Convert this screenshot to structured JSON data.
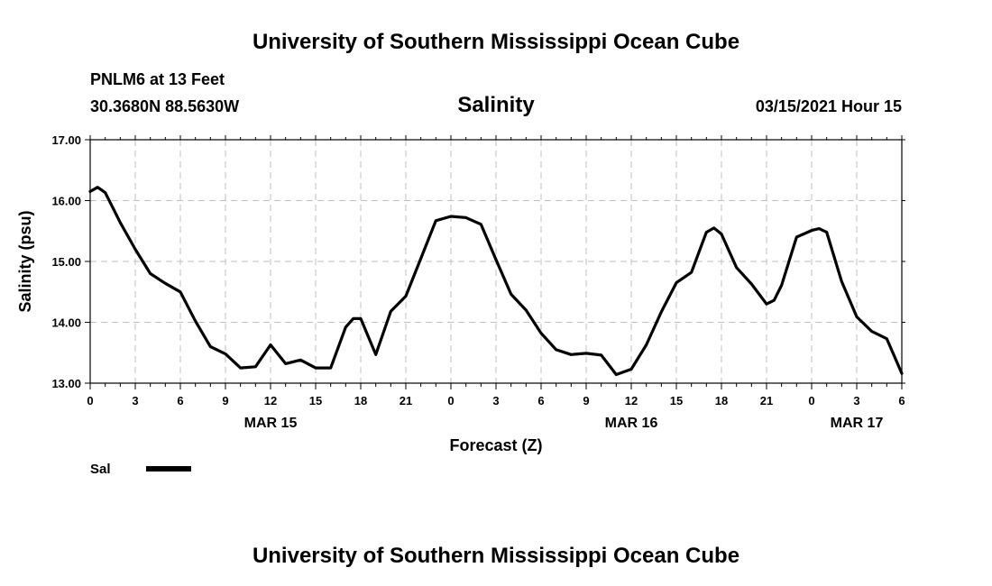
{
  "header": {
    "title": "University of Southern Mississippi Ocean Cube",
    "station": "PNLM6 at 13 Feet",
    "coords": "30.3680N 88.5630W",
    "variable": "Salinity",
    "run": "03/15/2021 Hour 15"
  },
  "footer": {
    "title": "University of Southern Mississippi Ocean Cube"
  },
  "chart_data": {
    "type": "line",
    "title": "Salinity",
    "xlabel": "Forecast (Z)",
    "ylabel": "Salinity (psu)",
    "ylim": [
      13.0,
      17.0
    ],
    "yticks": [
      "13.00",
      "14.00",
      "15.00",
      "16.00",
      "17.00"
    ],
    "xlim": [
      "03/15/2021 00Z",
      "03/17/2021 06Z"
    ],
    "xtick_labels": [
      "0",
      "3",
      "6",
      "9",
      "12",
      "15",
      "18",
      "21",
      "0",
      "3",
      "6",
      "9",
      "12",
      "15",
      "18",
      "21",
      "0",
      "3",
      "6"
    ],
    "date_labels": [
      {
        "text": "MAR 15",
        "at": "03/15/2021 12Z"
      },
      {
        "text": "MAR 16",
        "at": "03/16/2021 12Z"
      },
      {
        "text": "MAR 17",
        "at": "03/17/2021 03Z"
      }
    ],
    "grid": true,
    "legend": {
      "placement": "bottom-left",
      "entries": [
        {
          "name": "Sal",
          "color": "#000000"
        }
      ]
    },
    "series": [
      {
        "name": "Sal",
        "color": "#000000",
        "x": [
          "03/15/2021 00Z",
          "03/15/2021 00:30Z",
          "03/15/2021 01Z",
          "03/15/2021 02Z",
          "03/15/2021 03Z",
          "03/15/2021 04Z",
          "03/15/2021 05Z",
          "03/15/2021 06Z",
          "03/15/2021 07Z",
          "03/15/2021 08Z",
          "03/15/2021 09Z",
          "03/15/2021 10Z",
          "03/15/2021 11Z",
          "03/15/2021 12Z",
          "03/15/2021 13Z",
          "03/15/2021 14Z",
          "03/15/2021 15Z",
          "03/15/2021 16Z",
          "03/15/2021 17Z",
          "03/15/2021 17:30Z",
          "03/15/2021 18Z",
          "03/15/2021 19Z",
          "03/15/2021 20Z",
          "03/15/2021 21Z",
          "03/15/2021 22Z",
          "03/15/2021 23Z",
          "03/16/2021 00Z",
          "03/16/2021 01Z",
          "03/16/2021 02Z",
          "03/16/2021 03Z",
          "03/16/2021 04Z",
          "03/16/2021 05Z",
          "03/16/2021 06Z",
          "03/16/2021 07Z",
          "03/16/2021 08Z",
          "03/16/2021 09Z",
          "03/16/2021 10Z",
          "03/16/2021 11Z",
          "03/16/2021 12Z",
          "03/16/2021 13Z",
          "03/16/2021 14Z",
          "03/16/2021 15Z",
          "03/16/2021 16Z",
          "03/16/2021 17Z",
          "03/16/2021 17:30Z",
          "03/16/2021 18Z",
          "03/16/2021 19Z",
          "03/16/2021 20Z",
          "03/16/2021 21Z",
          "03/16/2021 21:30Z",
          "03/16/2021 22Z",
          "03/16/2021 23Z",
          "03/17/2021 00Z",
          "03/17/2021 00:30Z",
          "03/17/2021 01Z",
          "03/17/2021 02Z",
          "03/17/2021 03Z",
          "03/17/2021 04Z",
          "03/17/2021 05Z",
          "03/17/2021 06Z"
        ],
        "values": [
          16.15,
          16.22,
          16.13,
          15.64,
          15.2,
          14.8,
          14.64,
          14.5,
          14.02,
          13.6,
          13.48,
          13.25,
          13.27,
          13.63,
          13.32,
          13.38,
          13.25,
          13.25,
          13.92,
          14.06,
          14.06,
          13.47,
          14.18,
          14.43,
          15.05,
          15.67,
          15.74,
          15.72,
          15.61,
          15.03,
          14.46,
          14.2,
          13.82,
          13.55,
          13.47,
          13.49,
          13.46,
          13.14,
          13.23,
          13.63,
          14.17,
          14.65,
          14.82,
          15.48,
          15.55,
          15.45,
          14.9,
          14.63,
          14.3,
          14.36,
          14.61,
          15.4,
          15.51,
          15.54,
          15.48,
          14.67,
          14.09,
          13.85,
          13.73,
          13.16
        ]
      }
    ]
  }
}
